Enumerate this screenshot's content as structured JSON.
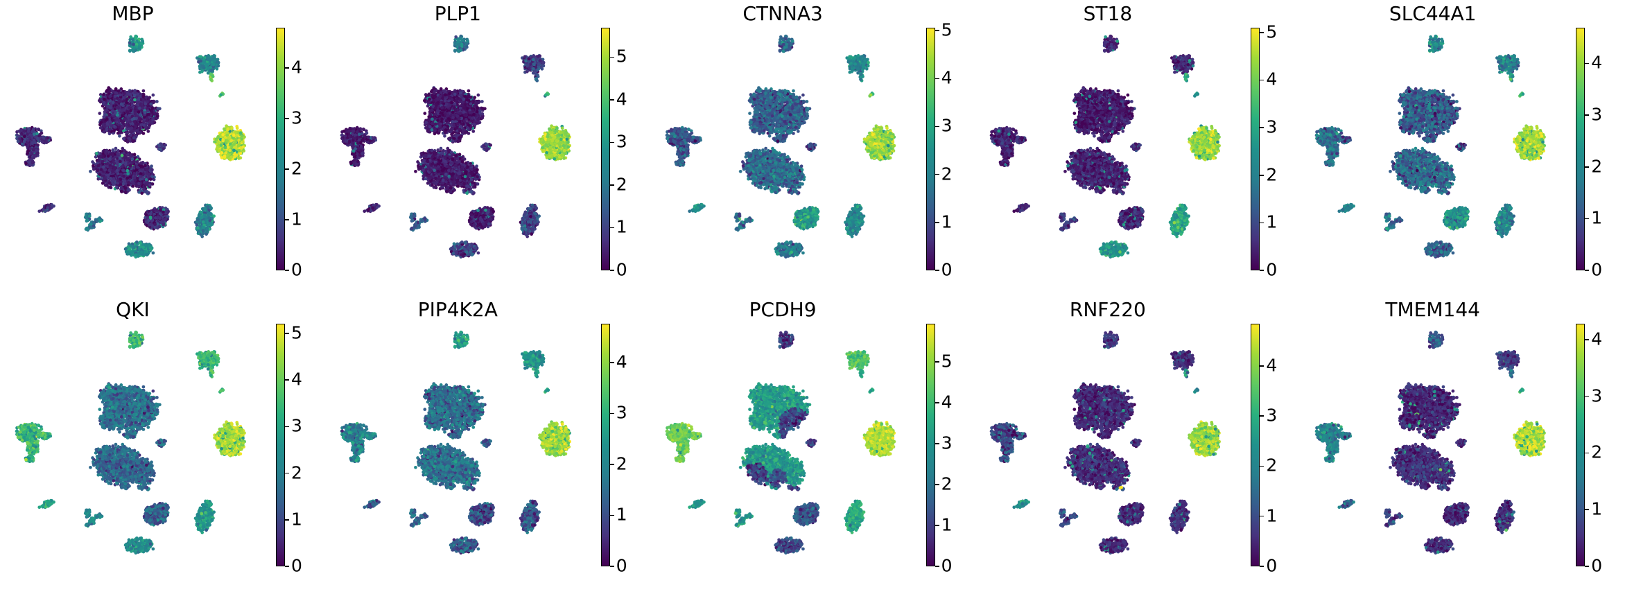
{
  "figure": {
    "type": "umap-feature-plot-grid",
    "colormap": "viridis",
    "background": "#ffffff",
    "rows": 2,
    "cols": 5,
    "panel_titles": [
      "MBP",
      "PLP1",
      "CTNNA3",
      "ST18",
      "SLC44A1",
      "QKI",
      "PIP4K2A",
      "PCDH9",
      "RNF220",
      "TMEM144"
    ]
  },
  "viridis_stops": [
    [
      0.0,
      "#440154"
    ],
    [
      0.125,
      "#46327e"
    ],
    [
      0.25,
      "#365c8d"
    ],
    [
      0.375,
      "#277f8e"
    ],
    [
      0.5,
      "#21918c"
    ],
    [
      0.625,
      "#2ab07f"
    ],
    [
      0.75,
      "#5ec962"
    ],
    [
      0.875,
      "#a0da39"
    ],
    [
      1.0,
      "#fde725"
    ]
  ],
  "embedding": {
    "description": "Shared 2D embedding; cluster lobes as [x,y,rx,ry,rot_deg,n_points] in normalized plot coords",
    "clusters": [
      {
        "id": "top_small",
        "lobes": [
          [
            0.513,
            0.075,
            0.03,
            0.026,
            0,
            75
          ],
          [
            0.5,
            0.103,
            0.013,
            0.009,
            0,
            12
          ]
        ]
      },
      {
        "id": "upper_right",
        "lobes": [
          [
            0.807,
            0.155,
            0.04,
            0.031,
            -12,
            150
          ],
          [
            0.773,
            0.138,
            0.016,
            0.013,
            0,
            25
          ]
        ]
      },
      {
        "id": "upper_right_tail",
        "lobes": [
          [
            0.818,
            0.205,
            0.0065,
            0.015,
            5,
            13
          ]
        ]
      },
      {
        "id": "right_dot",
        "lobes": [
          [
            0.86,
            0.27,
            0.008,
            0.007,
            0,
            7
          ]
        ]
      },
      {
        "id": "left_mushroom",
        "lobes": [
          [
            0.082,
            0.425,
            0.05,
            0.031,
            -6,
            240
          ],
          [
            0.148,
            0.437,
            0.019,
            0.013,
            0,
            45
          ],
          [
            0.095,
            0.478,
            0.021,
            0.03,
            6,
            110
          ],
          [
            0.083,
            0.525,
            0.016,
            0.011,
            0,
            30
          ]
        ]
      },
      {
        "id": "central_upper",
        "lobes": [
          [
            0.49,
            0.335,
            0.1,
            0.08,
            0,
            1050
          ],
          [
            0.415,
            0.285,
            0.045,
            0.038,
            0,
            190
          ],
          [
            0.4,
            0.385,
            0.034,
            0.028,
            0,
            110
          ],
          [
            0.49,
            0.435,
            0.028,
            0.013,
            0,
            50
          ]
        ]
      },
      {
        "id": "central_lower",
        "lobes": [
          [
            0.44,
            0.545,
            0.09,
            0.068,
            0,
            850
          ],
          [
            0.545,
            0.575,
            0.042,
            0.046,
            0,
            210
          ],
          [
            0.385,
            0.5,
            0.032,
            0.022,
            0,
            90
          ],
          [
            0.47,
            0.625,
            0.023,
            0.011,
            0,
            40
          ]
        ]
      },
      {
        "id": "mid_dot",
        "lobes": [
          [
            0.616,
            0.465,
            0.015,
            0.012,
            0,
            28
          ]
        ]
      },
      {
        "id": "crumbs",
        "lobes": [
          [
            0.532,
            0.634,
            0.011,
            0.007,
            0,
            10
          ],
          [
            0.562,
            0.639,
            0.007,
            0.005,
            0,
            7
          ]
        ]
      },
      {
        "id": "spark",
        "lobes": [
          [
            0.553,
            0.63,
            0.004,
            0.004,
            0,
            2
          ]
        ]
      },
      {
        "id": "right_round",
        "lobes": [
          [
            0.896,
            0.452,
            0.055,
            0.058,
            0,
            520
          ]
        ]
      },
      {
        "id": "bottom_left_ellipse",
        "lobes": [
          [
            0.154,
            0.694,
            0.026,
            0.0095,
            -20,
            40
          ]
        ]
      },
      {
        "id": "bottom_scatter",
        "lobes": [
          [
            0.318,
            0.728,
            0.011,
            0.015,
            0,
            22
          ],
          [
            0.335,
            0.757,
            0.013,
            0.011,
            0,
            22
          ],
          [
            0.368,
            0.738,
            0.009,
            0.008,
            0,
            14
          ],
          [
            0.316,
            0.772,
            0.007,
            0.006,
            0,
            10
          ],
          [
            0.352,
            0.742,
            0.005,
            0.005,
            0,
            7
          ]
        ]
      },
      {
        "id": "bottom_center",
        "lobes": [
          [
            0.594,
            0.732,
            0.046,
            0.036,
            -12,
            270
          ],
          [
            0.625,
            0.705,
            0.02,
            0.014,
            0,
            40
          ]
        ]
      },
      {
        "id": "bottom_right",
        "lobes": [
          [
            0.79,
            0.745,
            0.032,
            0.051,
            14,
            250
          ],
          [
            0.802,
            0.693,
            0.014,
            0.011,
            0,
            30
          ]
        ]
      },
      {
        "id": "bottom_blob",
        "lobes": [
          [
            0.527,
            0.849,
            0.048,
            0.025,
            4,
            190
          ],
          [
            0.482,
            0.858,
            0.014,
            0.009,
            0,
            22
          ],
          [
            0.568,
            0.842,
            0.011,
            0.008,
            0,
            18
          ]
        ]
      }
    ]
  },
  "chart_data": [
    {
      "type": "scatter",
      "title": "MBP",
      "vmax": 4.79,
      "colorbar_ticks": [
        0,
        1,
        2,
        3,
        4
      ],
      "cluster_expression": {
        "top_small": 2.3,
        "upper_right": 2.1,
        "upper_right_tail": 3.8,
        "right_dot": 3.4,
        "left_mushroom": 0.45,
        "central_upper": 0.35,
        "central_lower": 0.4,
        "mid_dot": 0.7,
        "crumbs": 0.8,
        "spark": 0.8,
        "right_round": 4.3,
        "bottom_left_ellipse": 0.6,
        "bottom_scatter": 1.8,
        "bottom_center": 0.45,
        "bottom_right": 2.0,
        "bottom_blob": 2.2
      }
    },
    {
      "type": "scatter",
      "title": "PLP1",
      "vmax": 5.69,
      "colorbar_ticks": [
        0,
        1,
        2,
        3,
        4,
        5
      ],
      "cluster_expression": {
        "top_small": 2.0,
        "upper_right": 1.0,
        "upper_right_tail": 1.2,
        "right_dot": 3.6,
        "left_mushroom": 0.35,
        "central_upper": 0.3,
        "central_lower": 0.35,
        "mid_dot": 0.6,
        "crumbs": 0.7,
        "spark": 0.7,
        "right_round": 4.9,
        "bottom_left_ellipse": 0.5,
        "bottom_scatter": 1.5,
        "bottom_center": 0.35,
        "bottom_right": 0.9,
        "bottom_blob": 0.9
      }
    },
    {
      "type": "scatter",
      "title": "CTNNA3",
      "vmax": 5.06,
      "colorbar_ticks": [
        0,
        1,
        2,
        3,
        4,
        5
      ],
      "cluster_expression": {
        "top_small": 1.4,
        "upper_right": 2.2,
        "upper_right_tail": 2.2,
        "right_dot": 3.2,
        "left_mushroom": 1.2,
        "central_upper": 1.35,
        "central_lower": 1.55,
        "mid_dot": 0.9,
        "crumbs": 1.0,
        "spark": 1.0,
        "right_round": 4.35,
        "bottom_left_ellipse": 2.3,
        "bottom_scatter": 1.7,
        "bottom_center": 2.7,
        "bottom_right": 2.2,
        "bottom_blob": 1.8
      }
    },
    {
      "type": "scatter",
      "title": "ST18",
      "vmax": 5.1,
      "colorbar_ticks": [
        0,
        1,
        2,
        3,
        4,
        5
      ],
      "cluster_expression": {
        "top_small": 0.5,
        "upper_right": 0.5,
        "upper_right_tail": 3.0,
        "right_dot": 2.8,
        "left_mushroom": 0.45,
        "central_upper": 0.3,
        "central_lower": 0.4,
        "mid_dot": 0.5,
        "crumbs": 0.6,
        "spark": 0.6,
        "right_round": 4.35,
        "bottom_left_ellipse": 0.5,
        "bottom_scatter": 0.9,
        "bottom_center": 0.45,
        "bottom_right": 2.8,
        "bottom_blob": 2.6
      }
    },
    {
      "type": "scatter",
      "title": "SLC44A1",
      "vmax": 4.69,
      "colorbar_ticks": [
        0,
        1,
        2,
        3,
        4
      ],
      "cluster_expression": {
        "top_small": 2.1,
        "upper_right": 2.0,
        "upper_right_tail": 3.0,
        "right_dot": 3.0,
        "left_mushroom": 1.5,
        "central_upper": 1.2,
        "central_lower": 1.4,
        "mid_dot": 0.9,
        "crumbs": 0.9,
        "spark": 0.9,
        "right_round": 4.15,
        "bottom_left_ellipse": 1.9,
        "bottom_scatter": 1.4,
        "bottom_center": 2.2,
        "bottom_right": 1.9,
        "bottom_blob": 1.3
      }
    },
    {
      "type": "scatter",
      "title": "QKI",
      "vmax": 5.21,
      "colorbar_ticks": [
        0,
        1,
        2,
        3,
        4,
        5
      ],
      "cluster_expression": {
        "top_small": 3.5,
        "upper_right": 3.5,
        "upper_right_tail": 3.5,
        "right_dot": 3.2,
        "left_mushroom": 3.4,
        "central_upper": 1.7,
        "central_lower": 1.5,
        "mid_dot": 1.5,
        "crumbs": 1.5,
        "spark": 1.5,
        "right_round": 4.6,
        "bottom_left_ellipse": 3.0,
        "bottom_scatter": 2.3,
        "bottom_center": 1.4,
        "bottom_right": 2.6,
        "bottom_blob": 2.4
      }
    },
    {
      "type": "scatter",
      "title": "PIP4K2A",
      "vmax": 4.76,
      "colorbar_ticks": [
        0,
        1,
        2,
        3,
        4
      ],
      "cluster_expression": {
        "top_small": 2.6,
        "upper_right": 2.3,
        "upper_right_tail": 2.4,
        "right_dot": 2.5,
        "left_mushroom": 1.9,
        "central_upper": 1.5,
        "central_lower": 1.6,
        "mid_dot": 1.2,
        "crumbs": 1.2,
        "spark": 1.2,
        "right_round": 4.1,
        "bottom_left_ellipse": 1.3,
        "bottom_scatter": 1.5,
        "bottom_center": 1.0,
        "bottom_right": 1.1,
        "bottom_blob": 1.2
      }
    },
    {
      "type": "scatter",
      "title": "PCDH9",
      "vmax": 5.93,
      "colorbar_ticks": [
        0,
        1,
        2,
        3,
        4,
        5
      ],
      "cluster_expression": {
        "top_small": 0.9,
        "upper_right": 4.3,
        "upper_right_tail": 3.5,
        "right_dot": 3.8,
        "left_mushroom": 4.6,
        "central_upper": 3.2,
        "central_lower": 3.1,
        "mid_dot": 0.9,
        "crumbs": 1.0,
        "spark": 1.0,
        "right_round": 5.4,
        "bottom_left_ellipse": 3.0,
        "bottom_scatter": 3.0,
        "bottom_center": 1.4,
        "bottom_right": 3.6,
        "bottom_blob": 1.2
      },
      "overrides": [
        {
          "cluster": "central_upper",
          "x": 0.55,
          "y": 0.4,
          "r": 0.068,
          "value": 1.0
        },
        {
          "cluster": "central_lower",
          "x": 0.39,
          "y": 0.59,
          "r": 0.05,
          "value": 1.0
        },
        {
          "cluster": "central_lower",
          "x": 0.48,
          "y": 0.6,
          "r": 0.035,
          "value": 1.2
        }
      ]
    },
    {
      "type": "scatter",
      "title": "RNF220",
      "vmax": 4.84,
      "colorbar_ticks": [
        0,
        1,
        2,
        3,
        4
      ],
      "cluster_expression": {
        "top_small": 0.7,
        "upper_right": 0.6,
        "upper_right_tail": 2.0,
        "right_dot": 2.5,
        "left_mushroom": 0.9,
        "central_upper": 0.5,
        "central_lower": 0.5,
        "mid_dot": 0.7,
        "crumbs": 0.8,
        "spark": 4.5,
        "right_round": 4.2,
        "bottom_left_ellipse": 2.5,
        "bottom_scatter": 0.9,
        "bottom_center": 0.5,
        "bottom_right": 0.6,
        "bottom_blob": 0.5
      }
    },
    {
      "type": "scatter",
      "title": "TMEM144",
      "vmax": 4.28,
      "colorbar_ticks": [
        0,
        1,
        2,
        3,
        4
      ],
      "cluster_expression": {
        "top_small": 0.9,
        "upper_right": 0.7,
        "upper_right_tail": 1.2,
        "right_dot": 2.8,
        "left_mushroom": 1.8,
        "central_upper": 0.4,
        "central_lower": 0.5,
        "mid_dot": 0.5,
        "crumbs": 0.6,
        "spark": 0.6,
        "right_round": 3.8,
        "bottom_left_ellipse": 1.4,
        "bottom_scatter": 0.8,
        "bottom_center": 0.45,
        "bottom_right": 0.45,
        "bottom_blob": 0.5
      }
    }
  ]
}
